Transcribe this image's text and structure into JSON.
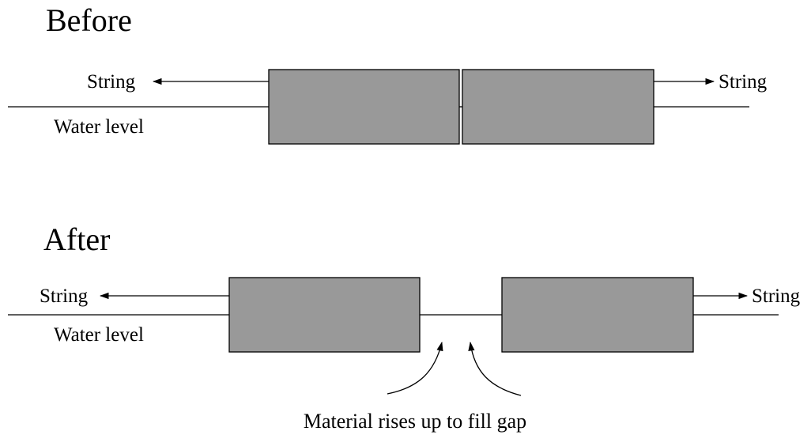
{
  "before": {
    "title": "Before",
    "string_left": "String",
    "string_right": "String",
    "water_label": "Water level"
  },
  "after": {
    "title": "After",
    "string_left": "String",
    "string_right": "String",
    "water_label": "Water level",
    "caption": "Material rises up to fill gap"
  },
  "colors": {
    "block_fill": "#999999",
    "line": "#000000",
    "background": "#ffffff"
  }
}
